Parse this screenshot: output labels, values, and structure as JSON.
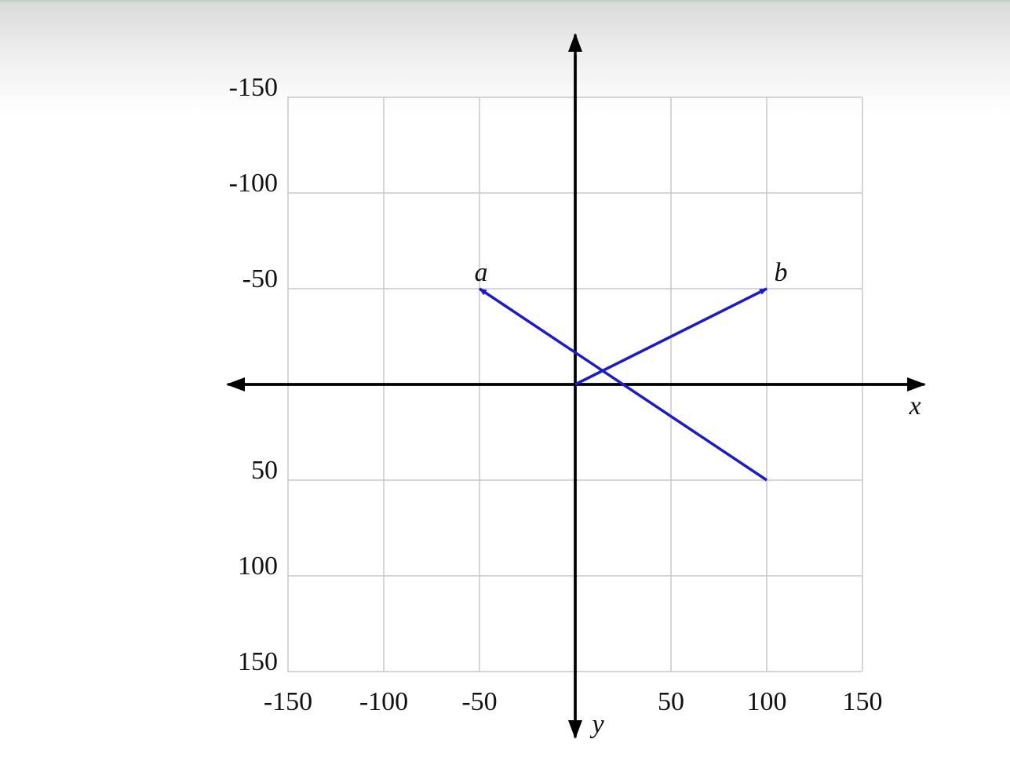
{
  "chart_data": {
    "type": "line",
    "xlabel": "x",
    "ylabel": "y",
    "xlim": [
      -150,
      150
    ],
    "ylim": [
      -150,
      150
    ],
    "y_axis_inverted": true,
    "grid": true,
    "x_ticks": [
      -150,
      -100,
      -50,
      50,
      100,
      150
    ],
    "y_ticks": [
      -150,
      -100,
      -50,
      50,
      100,
      150
    ],
    "x_tick_labels": [
      "-150",
      "-100",
      "-50",
      "50",
      "100",
      "150"
    ],
    "y_tick_labels": [
      "-150",
      "-100",
      "-50",
      "50",
      "100",
      "150"
    ],
    "series": [
      {
        "name": "a",
        "start": [
          100,
          50
        ],
        "end": [
          -50,
          -50
        ],
        "color": "#1a1ad6"
      },
      {
        "name": "b",
        "start": [
          0,
          0
        ],
        "end": [
          100,
          -50
        ],
        "color": "#1a1ad6"
      }
    ]
  }
}
